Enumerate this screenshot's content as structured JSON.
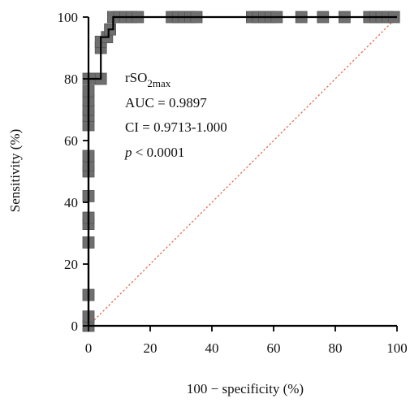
{
  "chart_data": {
    "type": "line",
    "title": "",
    "xlabel": "100 − specificity (%)",
    "ylabel": "Sensitivity (%)",
    "xlim": [
      0,
      100
    ],
    "ylim": [
      0,
      100
    ],
    "xticks": [
      0,
      20,
      40,
      60,
      80,
      100
    ],
    "yticks": [
      0,
      20,
      40,
      60,
      80,
      100
    ],
    "xtick_labels": [
      "0",
      "20",
      "40",
      "60",
      "80",
      "100"
    ],
    "ytick_labels": [
      "0",
      "20",
      "40",
      "60",
      "80",
      "100"
    ],
    "grid": false,
    "legend": "none",
    "series": [
      {
        "kind": "roc-step",
        "color": "#000000",
        "x": [
          0,
          0,
          0,
          0,
          0,
          0,
          0,
          0,
          0,
          0,
          0,
          0,
          0,
          0,
          0,
          0,
          4,
          4,
          4,
          4,
          6.5,
          6.5,
          8,
          8,
          100
        ],
        "y": [
          0,
          3,
          10,
          27,
          33,
          35,
          42,
          50,
          52,
          55,
          65,
          68,
          70,
          73,
          80,
          80,
          80,
          90,
          92,
          93.5,
          93.5,
          96,
          96,
          100,
          100
        ]
      },
      {
        "kind": "reference-diagonal",
        "color": "#e07050",
        "x": [
          0,
          100
        ],
        "y": [
          0,
          100
        ]
      }
    ],
    "markers": {
      "shape": "square",
      "color": "#6f6f6f",
      "points": [
        [
          0,
          0
        ],
        [
          0,
          3
        ],
        [
          0,
          10
        ],
        [
          0,
          27
        ],
        [
          0,
          33
        ],
        [
          0,
          35
        ],
        [
          0,
          42
        ],
        [
          0,
          50
        ],
        [
          0,
          52
        ],
        [
          0,
          55
        ],
        [
          0,
          65
        ],
        [
          0,
          68
        ],
        [
          0,
          70
        ],
        [
          0,
          73
        ],
        [
          0,
          76
        ],
        [
          0,
          80
        ],
        [
          2,
          80
        ],
        [
          4,
          80
        ],
        [
          4,
          90
        ],
        [
          4,
          92
        ],
        [
          6,
          93.5
        ],
        [
          7,
          96
        ],
        [
          8,
          100
        ],
        [
          10,
          100
        ],
        [
          12,
          100
        ],
        [
          14,
          100
        ],
        [
          16,
          100
        ],
        [
          27,
          100
        ],
        [
          29,
          100
        ],
        [
          31,
          100
        ],
        [
          33,
          100
        ],
        [
          35,
          100
        ],
        [
          53,
          100
        ],
        [
          55,
          100
        ],
        [
          57,
          100
        ],
        [
          59,
          100
        ],
        [
          61,
          100
        ],
        [
          69,
          100
        ],
        [
          76,
          100
        ],
        [
          83,
          100
        ],
        [
          91,
          100
        ],
        [
          93,
          100
        ],
        [
          95,
          100
        ],
        [
          97,
          100
        ],
        [
          99,
          100
        ]
      ]
    },
    "annotation": {
      "metric_base": "rSO",
      "metric_sub": "2max",
      "auc_line": "AUC = 0.9897",
      "ci_line": "CI = 0.9713-1.000",
      "p_symbol": "p",
      "p_rest": " < 0.0001"
    }
  }
}
